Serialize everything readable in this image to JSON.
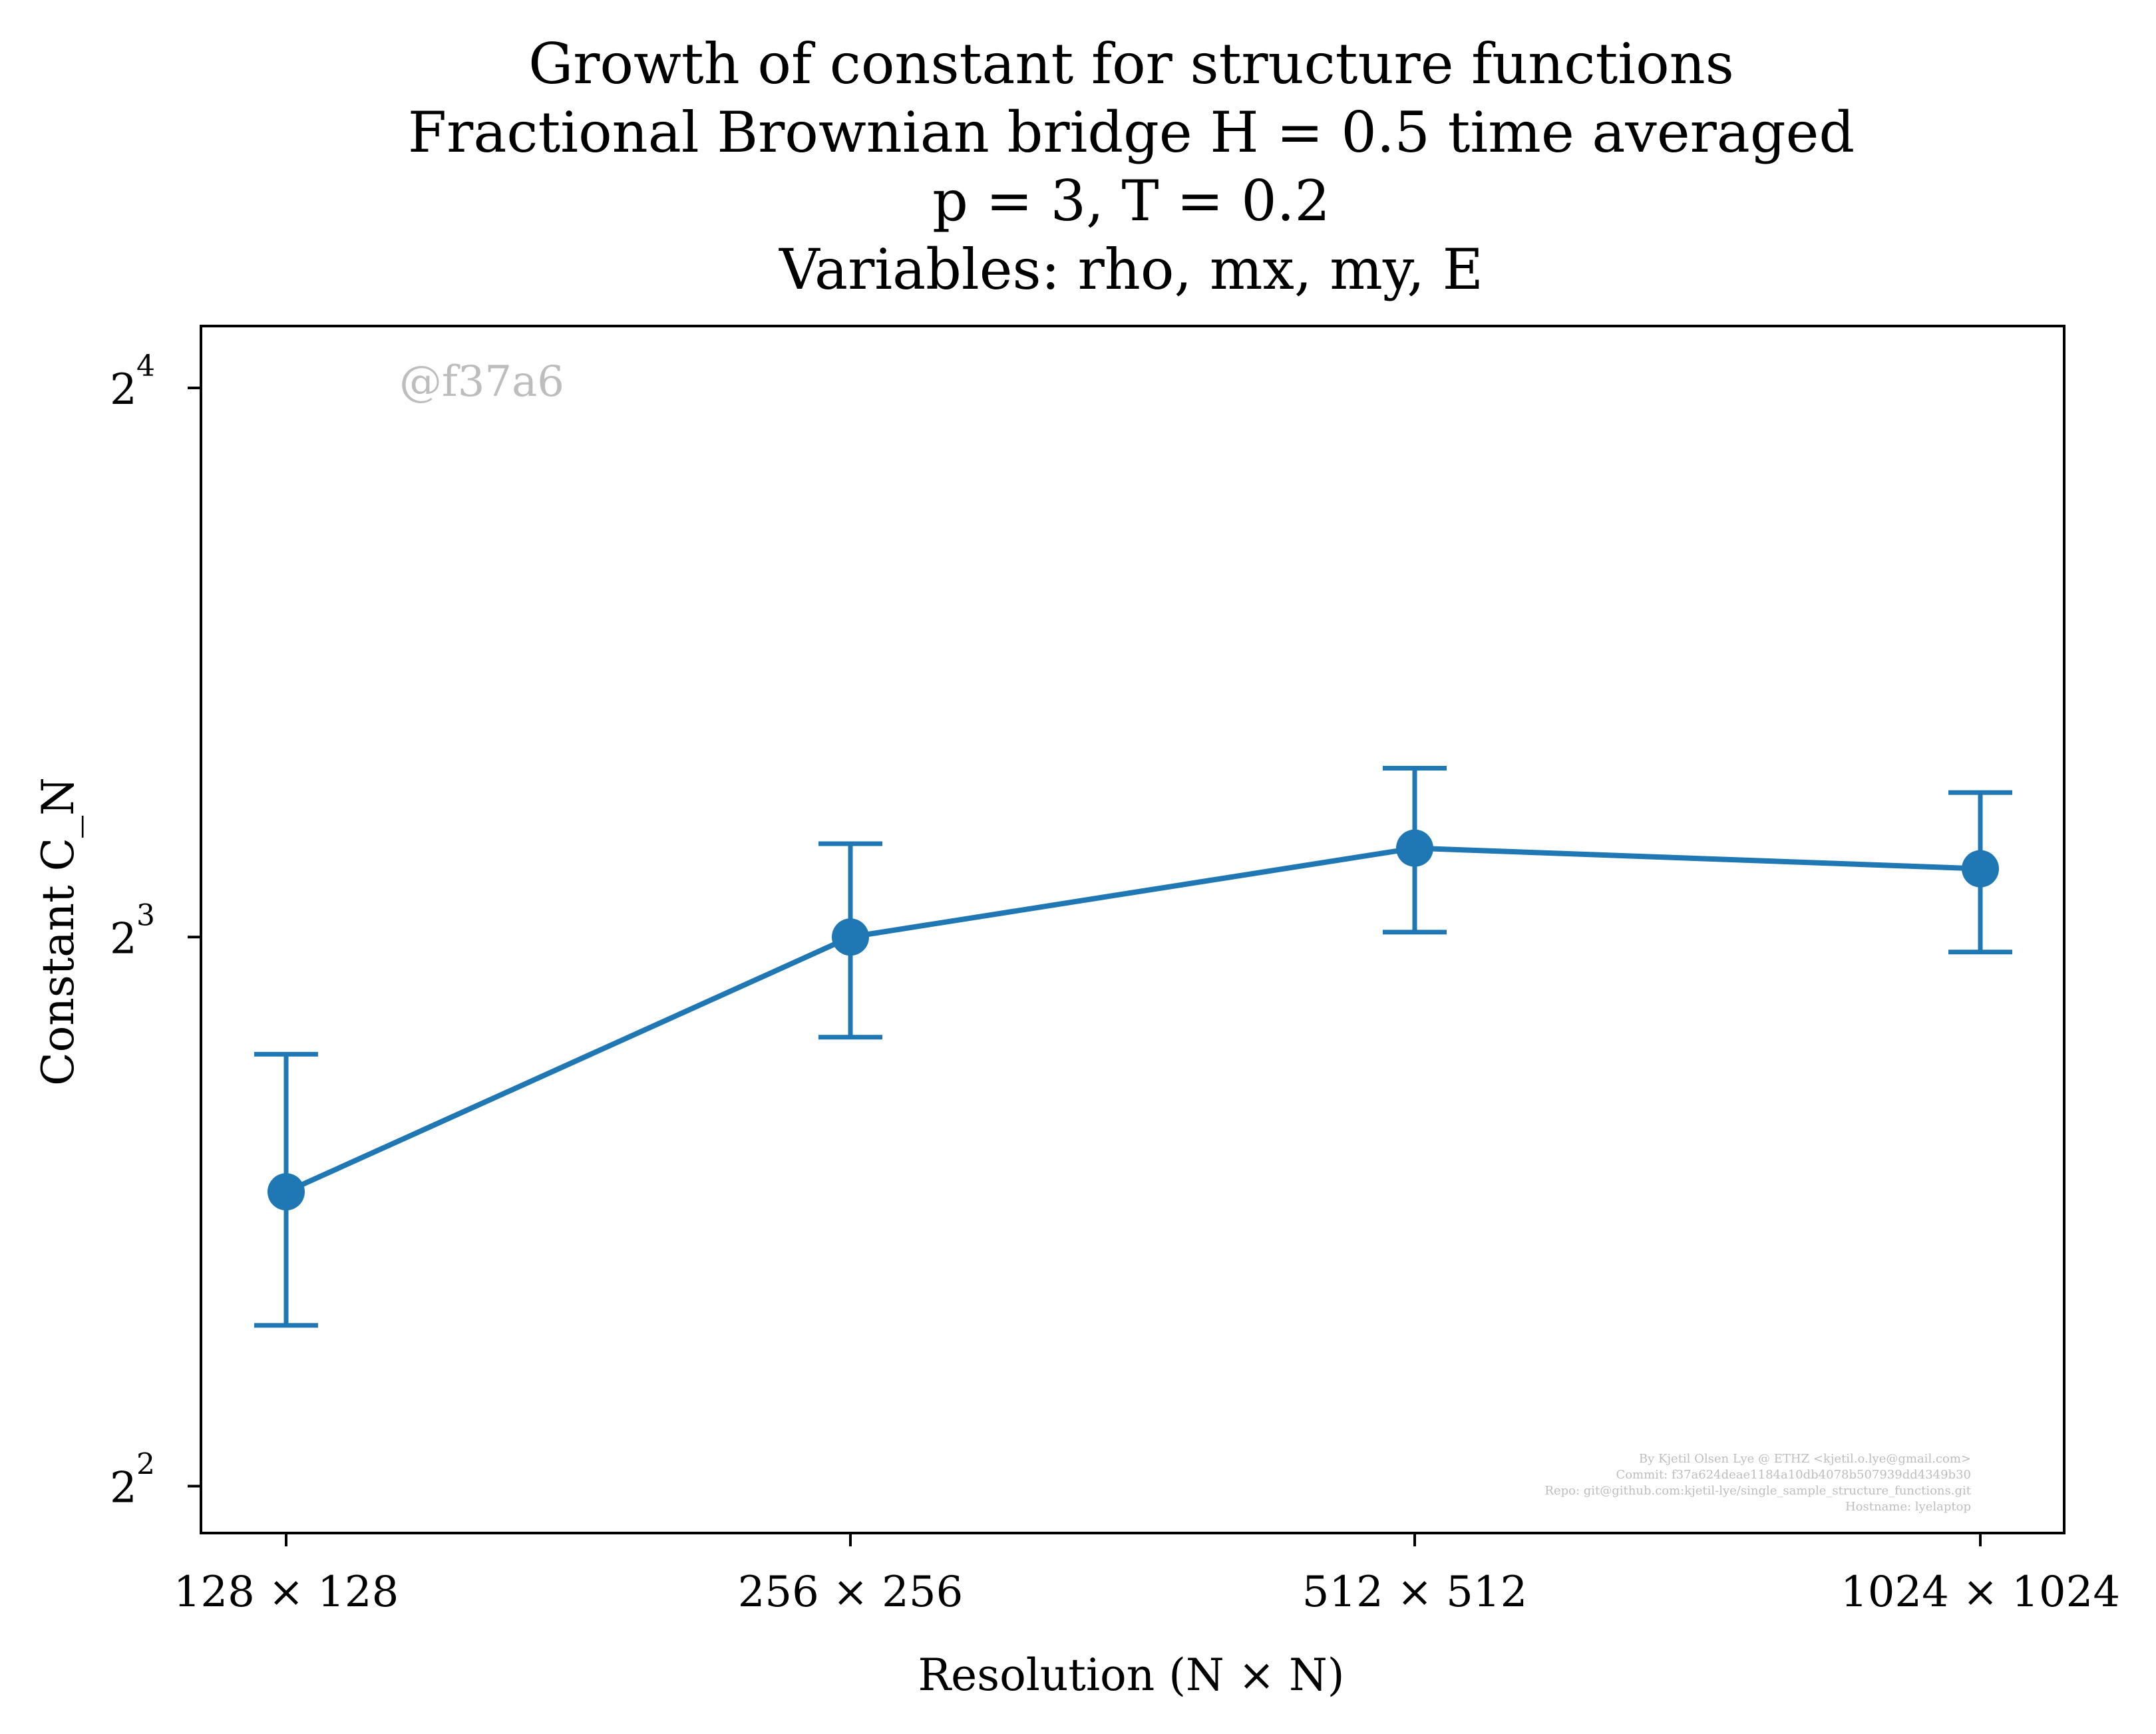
{
  "chart_data": {
    "type": "line",
    "title_lines": [
      "Growth of constant for structure functions",
      "Fractional Brownian bridge H = 0.5 time averaged",
      "p = 3, T = 0.2",
      "Variables: rho, mx, my, E"
    ],
    "xlabel": "Resolution (N × N)",
    "ylabel": "Constant C_N",
    "categories": [
      "128 × 128",
      "256 × 256",
      "512 × 512",
      "1024 × 1024"
    ],
    "y_scale": "log2",
    "ylim": [
      3.77,
      17.3
    ],
    "y_ticks": [
      {
        "base": "2",
        "exp": "2",
        "value": 4
      },
      {
        "base": "2",
        "exp": "3",
        "value": 8
      },
      {
        "base": "2",
        "exp": "4",
        "value": 16
      }
    ],
    "series": [
      {
        "color": "#1f77b4",
        "values": [
          5.8,
          8.0,
          8.95,
          8.72
        ],
        "err_low": [
          4.9,
          7.05,
          8.05,
          7.85
        ],
        "err_high": [
          6.9,
          9.0,
          9.9,
          9.6
        ]
      }
    ],
    "grid": false,
    "watermark": "@f37a6",
    "credits": [
      "By Kjetil Olsen Lye @ ETHZ <kjetil.o.lye@gmail.com>",
      "Commit: f37a624deae1184a10db4078b507939dd4349b30",
      "Repo: git@github.com:kjetil-lye/single_sample_structure_functions.git",
      "Hostname: lyelaptop"
    ]
  }
}
